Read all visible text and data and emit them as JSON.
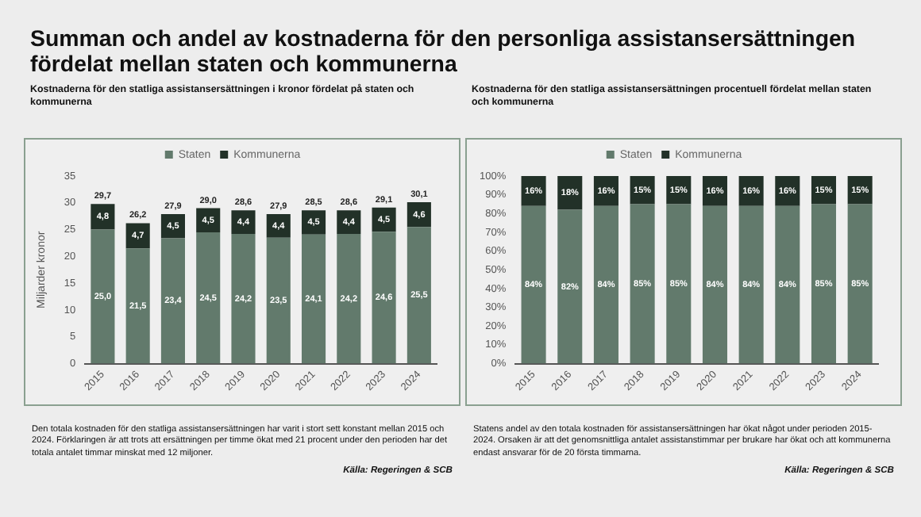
{
  "chart_data": [
    {
      "type": "bar",
      "title": "Summan och andel av kostnaderna för den personliga assistansersättningen fördelat mellan staten och kommunerna",
      "subtitle": "Kostnaderna för den statliga assistansersättningen i kronor fördelat på staten och kommunerna",
      "ylabel": "Miljarder kronor",
      "categories": [
        "2015",
        "2016",
        "2017",
        "2018",
        "2019",
        "2020",
        "2021",
        "2022",
        "2023",
        "2024"
      ],
      "stacked": true,
      "legend": "top",
      "grid": false,
      "ylim": [
        0,
        35
      ],
      "yticks": [
        0,
        5,
        10,
        15,
        20,
        25,
        30,
        35
      ],
      "series": [
        {
          "name": "Staten",
          "color": "#627a6c",
          "values": [
            25.0,
            21.5,
            23.4,
            24.5,
            24.2,
            23.5,
            24.1,
            24.2,
            24.6,
            25.5
          ],
          "value_labels": [
            "25,0",
            "21,5",
            "23,4",
            "24,5",
            "24,2",
            "23,5",
            "24,1",
            "24,2",
            "24,6",
            "25,5"
          ]
        },
        {
          "name": "Kommunerna",
          "color": "#223128",
          "values": [
            4.8,
            4.7,
            4.5,
            4.5,
            4.4,
            4.4,
            4.5,
            4.4,
            4.5,
            4.6
          ],
          "value_labels": [
            "4,8",
            "4,7",
            "4,5",
            "4,5",
            "4,4",
            "4,4",
            "4,5",
            "4,4",
            "4,5",
            "4,6"
          ]
        }
      ],
      "totals": [
        "29,7",
        "26,2",
        "27,9",
        "29,0",
        "28,6",
        "27,9",
        "28,5",
        "28,6",
        "29,1",
        "30,1"
      ],
      "annotations": [
        "Den totala kostnaden för den statliga assistansersättningen har varit i stort sett konstant mellan 2015 och 2024. Förklaringen är att trots att ersättningen per timme ökat med 21 procent under den perioden har det totala antalet timmar minskat med 12 miljoner.",
        "Källa: Regeringen & SCB"
      ]
    },
    {
      "type": "bar",
      "subtitle": "Kostnaderna för den statliga assistansersättningen procentuell  fördelat mellan staten och kommunerna",
      "categories": [
        "2015",
        "2016",
        "2017",
        "2018",
        "2019",
        "2020",
        "2021",
        "2022",
        "2023",
        "2024"
      ],
      "stacked": true,
      "legend": "top",
      "grid": false,
      "ylim": [
        0,
        100
      ],
      "yticks": [
        {
          "value": 0,
          "label": "0%"
        },
        {
          "value": 10,
          "label": "10%"
        },
        {
          "value": 20,
          "label": "20%"
        },
        {
          "value": 30,
          "label": "30%"
        },
        {
          "value": 40,
          "label": "40%"
        },
        {
          "value": 50,
          "label": "50%"
        },
        {
          "value": 60,
          "label": "60%"
        },
        {
          "value": 70,
          "label": "70%"
        },
        {
          "value": 80,
          "label": "80%"
        },
        {
          "value": 90,
          "label": "90%"
        },
        {
          "value": 100,
          "label": "100%"
        }
      ],
      "series": [
        {
          "name": "Staten",
          "color": "#627a6c",
          "values": [
            84,
            82,
            84,
            85,
            85,
            84,
            84,
            84,
            85,
            85
          ],
          "value_labels": [
            "84%",
            "82%",
            "84%",
            "85%",
            "85%",
            "84%",
            "84%",
            "84%",
            "85%",
            "85%"
          ]
        },
        {
          "name": "Kommunerna",
          "color": "#223128",
          "values": [
            16,
            18,
            16,
            15,
            15,
            16,
            16,
            16,
            15,
            15
          ],
          "value_labels": [
            "16%",
            "18%",
            "16%",
            "15%",
            "15%",
            "16%",
            "16%",
            "16%",
            "15%",
            "15%"
          ]
        }
      ],
      "annotations": [
        "Statens andel av den totala kostnaden för assistansersättningen har ökat något under perioden 2015-2024. Orsaken är att det genomsnittliga antalet assistanstimmar per brukare har ökat och att kommunerna endast ansvarar för de 20 första timmarna.",
        "Källa: Regeringen & SCB"
      ]
    }
  ]
}
